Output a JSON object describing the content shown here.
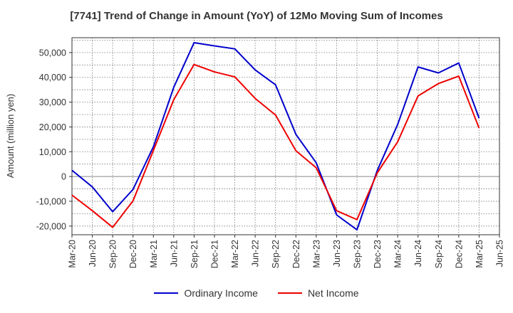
{
  "chart_data": {
    "type": "line",
    "title": "[7741]  Trend of Change in Amount (YoY) of 12Mo Moving Sum of Incomes",
    "xlabel": "",
    "ylabel": "Amount (million yen)",
    "ylim": [
      -23500,
      56000
    ],
    "yticks": [
      -20000,
      -10000,
      0,
      10000,
      20000,
      30000,
      40000,
      50000
    ],
    "ytick_labels": [
      "-20,000",
      "-10,000",
      "0",
      "10,000",
      "20,000",
      "30,000",
      "40,000",
      "50,000"
    ],
    "categories": [
      "Mar-20",
      "Jun-20",
      "Sep-20",
      "Dec-20",
      "Mar-21",
      "Jun-21",
      "Sep-21",
      "Dec-21",
      "Mar-22",
      "Jun-22",
      "Sep-22",
      "Dec-22",
      "Mar-23",
      "Jun-23",
      "Sep-23",
      "Dec-23",
      "Mar-24",
      "Jun-24",
      "Sep-24",
      "Dec-24",
      "Mar-25",
      "Jun-25"
    ],
    "grid": true,
    "legend_position": "bottom",
    "series": [
      {
        "name": "Ordinary Income",
        "color": "#0000cc",
        "values": [
          2500,
          -4200,
          -14200,
          -5200,
          12000,
          36000,
          54000,
          52700,
          51500,
          43000,
          37000,
          17000,
          5500,
          -15500,
          -21500,
          2500,
          21000,
          44200,
          41800,
          45800,
          23500,
          null
        ]
      },
      {
        "name": "Net Income",
        "color": "#ee0000",
        "values": [
          -7500,
          -13800,
          -20500,
          -9800,
          10500,
          31000,
          45200,
          42200,
          40200,
          31500,
          24800,
          10400,
          3500,
          -13800,
          -17400,
          1500,
          14000,
          32500,
          37500,
          40500,
          19500,
          null
        ]
      }
    ]
  }
}
